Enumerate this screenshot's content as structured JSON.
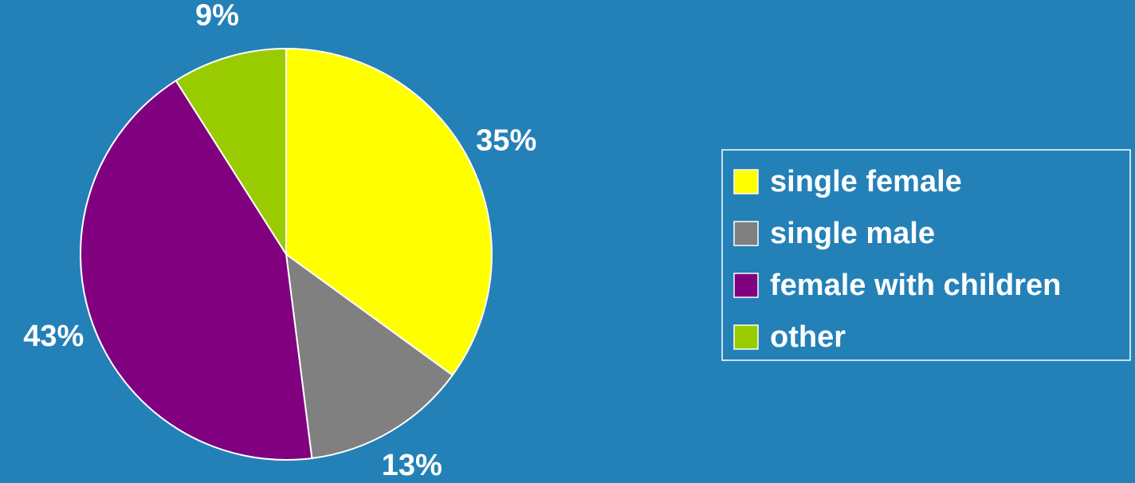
{
  "chart_data": {
    "type": "pie",
    "categories": [
      "single female",
      "single male",
      "female with children",
      "other"
    ],
    "values": [
      35,
      13,
      43,
      9
    ],
    "value_labels": [
      "35%",
      "13%",
      "43%",
      "9%"
    ],
    "colors": [
      "#ffff00",
      "#808080",
      "#800080",
      "#99cc00"
    ],
    "legend": "right"
  }
}
